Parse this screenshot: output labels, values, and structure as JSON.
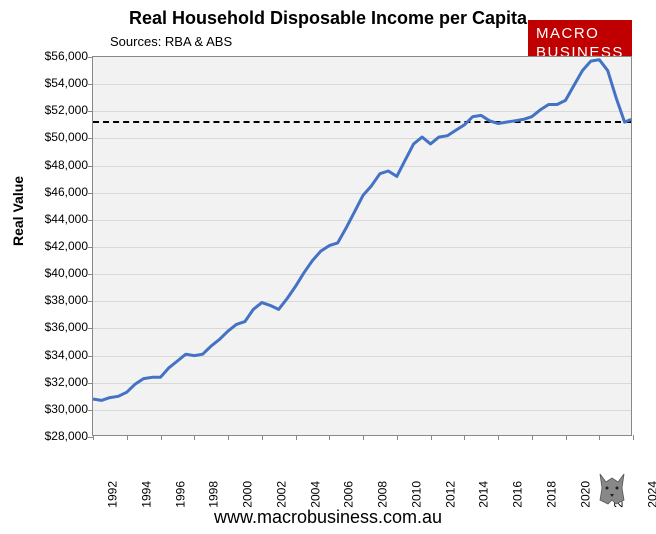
{
  "title": "Real Household Disposable Income per Capita",
  "sources": "Sources: RBA & ABS",
  "logo_line1": "MACRO",
  "logo_line2": "BUSINESS",
  "logo_bg": "#c00000",
  "y_axis_label": "Real Value",
  "footer_url": "www.macrobusiness.com.au",
  "chart": {
    "type": "line",
    "line_color": "#4472c4",
    "line_width": 3,
    "background_color": "#f2f2f2",
    "grid_color": "#d9d9d9",
    "border_color": "#888888",
    "ylim": [
      28000,
      56000
    ],
    "ytick_step": 2000,
    "y_tick_labels": [
      "$28,000",
      "$30,000",
      "$32,000",
      "$34,000",
      "$36,000",
      "$38,000",
      "$40,000",
      "$42,000",
      "$44,000",
      "$46,000",
      "$48,000",
      "$50,000",
      "$52,000",
      "$54,000",
      "$56,000"
    ],
    "xlim": [
      1992,
      2024
    ],
    "xtick_step": 2,
    "x_tick_labels": [
      "1992",
      "1994",
      "1996",
      "1998",
      "2000",
      "2002",
      "2004",
      "2006",
      "2008",
      "2010",
      "2012",
      "2014",
      "2016",
      "2018",
      "2020",
      "2022",
      "2024"
    ],
    "reference_line_y": 51300,
    "series": [
      {
        "x": 1992.0,
        "y": 30800
      },
      {
        "x": 1992.5,
        "y": 30700
      },
      {
        "x": 1993.0,
        "y": 30900
      },
      {
        "x": 1993.5,
        "y": 31000
      },
      {
        "x": 1994.0,
        "y": 31300
      },
      {
        "x": 1994.5,
        "y": 31900
      },
      {
        "x": 1995.0,
        "y": 32300
      },
      {
        "x": 1995.5,
        "y": 32400
      },
      {
        "x": 1996.0,
        "y": 32400
      },
      {
        "x": 1996.5,
        "y": 33100
      },
      {
        "x": 1997.0,
        "y": 33600
      },
      {
        "x": 1997.5,
        "y": 34100
      },
      {
        "x": 1998.0,
        "y": 34000
      },
      {
        "x": 1998.5,
        "y": 34100
      },
      {
        "x": 1999.0,
        "y": 34700
      },
      {
        "x": 1999.5,
        "y": 35200
      },
      {
        "x": 2000.0,
        "y": 35800
      },
      {
        "x": 2000.5,
        "y": 36300
      },
      {
        "x": 2001.0,
        "y": 36500
      },
      {
        "x": 2001.5,
        "y": 37400
      },
      {
        "x": 2002.0,
        "y": 37900
      },
      {
        "x": 2002.5,
        "y": 37700
      },
      {
        "x": 2003.0,
        "y": 37400
      },
      {
        "x": 2003.5,
        "y": 38200
      },
      {
        "x": 2004.0,
        "y": 39100
      },
      {
        "x": 2004.5,
        "y": 40100
      },
      {
        "x": 2005.0,
        "y": 41000
      },
      {
        "x": 2005.5,
        "y": 41700
      },
      {
        "x": 2006.0,
        "y": 42100
      },
      {
        "x": 2006.5,
        "y": 42300
      },
      {
        "x": 2007.0,
        "y": 43400
      },
      {
        "x": 2007.5,
        "y": 44600
      },
      {
        "x": 2008.0,
        "y": 45800
      },
      {
        "x": 2008.5,
        "y": 46500
      },
      {
        "x": 2009.0,
        "y": 47400
      },
      {
        "x": 2009.5,
        "y": 47600
      },
      {
        "x": 2010.0,
        "y": 47200
      },
      {
        "x": 2010.5,
        "y": 48400
      },
      {
        "x": 2011.0,
        "y": 49600
      },
      {
        "x": 2011.5,
        "y": 50100
      },
      {
        "x": 2012.0,
        "y": 49600
      },
      {
        "x": 2012.5,
        "y": 50100
      },
      {
        "x": 2013.0,
        "y": 50200
      },
      {
        "x": 2013.5,
        "y": 50600
      },
      {
        "x": 2014.0,
        "y": 51000
      },
      {
        "x": 2014.5,
        "y": 51600
      },
      {
        "x": 2015.0,
        "y": 51700
      },
      {
        "x": 2015.5,
        "y": 51300
      },
      {
        "x": 2016.0,
        "y": 51100
      },
      {
        "x": 2016.5,
        "y": 51200
      },
      {
        "x": 2017.0,
        "y": 51300
      },
      {
        "x": 2017.5,
        "y": 51400
      },
      {
        "x": 2018.0,
        "y": 51600
      },
      {
        "x": 2018.5,
        "y": 52100
      },
      {
        "x": 2019.0,
        "y": 52500
      },
      {
        "x": 2019.5,
        "y": 52500
      },
      {
        "x": 2020.0,
        "y": 52800
      },
      {
        "x": 2020.5,
        "y": 53900
      },
      {
        "x": 2021.0,
        "y": 55000
      },
      {
        "x": 2021.5,
        "y": 55700
      },
      {
        "x": 2022.0,
        "y": 55800
      },
      {
        "x": 2022.5,
        "y": 55000
      },
      {
        "x": 2023.0,
        "y": 53000
      },
      {
        "x": 2023.5,
        "y": 51200
      },
      {
        "x": 2023.9,
        "y": 51400
      }
    ]
  }
}
